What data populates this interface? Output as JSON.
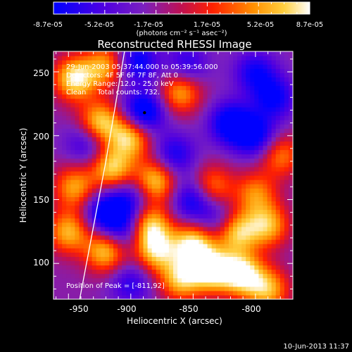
{
  "colorbar": {
    "tick_labels": [
      "-8.7e-05",
      "-5.2e-05",
      "-1.7e-05",
      "1.7e-05",
      "5.2e-05",
      "8.7e-05"
    ],
    "range": [
      -8.7e-05,
      8.7e-05
    ],
    "unit_label": "(photons cm⁻² s⁻¹ asec⁻²)",
    "colormap": "blue-purple-red-yellow-white"
  },
  "chart_data": {
    "type": "heatmap",
    "title": "Reconstructed RHESSI Image",
    "xlabel": "Heliocentric X (arcsec)",
    "ylabel": "Heliocentric Y (arcsec)",
    "xlim": [
      -962,
      -770
    ],
    "ylim": [
      72,
      266
    ],
    "x_ticks": [
      -950,
      -900,
      -850,
      -800
    ],
    "y_ticks": [
      100,
      150,
      200,
      250
    ],
    "x_tick_labels": [
      "-950",
      "-900",
      "-850",
      "-800"
    ],
    "y_tick_labels": [
      "100",
      "150",
      "200",
      "250"
    ],
    "annotations": [
      "29-Jun-2003 05:37:44.000 to 05:39:56.000",
      "Detectors: 4F 5F 6F 7F 8F, Att 0",
      "Energy Range: 12.0 - 25.0 keV",
      "Clean     Total counts: 732."
    ],
    "peak_label": "Position of Peak = [-811,92]",
    "peak_position": [
      -811,
      92
    ],
    "marker_position": [
      -889,
      218
    ],
    "limb_line": [
      [
        -941,
        72
      ],
      [
        -920,
        180
      ],
      [
        -905,
        266
      ]
    ],
    "intensity_blobs": [
      {
        "x": -945,
        "y": 245,
        "v": 0.95
      },
      {
        "x": -925,
        "y": 210,
        "v": 0.9
      },
      {
        "x": -900,
        "y": 200,
        "v": 0.9
      },
      {
        "x": -915,
        "y": 175,
        "v": 0.85
      },
      {
        "x": -920,
        "y": 255,
        "v": 0.7
      },
      {
        "x": -860,
        "y": 235,
        "v": 0.75
      },
      {
        "x": -945,
        "y": 160,
        "v": 0.7
      },
      {
        "x": -880,
        "y": 165,
        "v": 0.85
      },
      {
        "x": -835,
        "y": 160,
        "v": 0.65
      },
      {
        "x": -800,
        "y": 155,
        "v": 0.6
      },
      {
        "x": -780,
        "y": 185,
        "v": 0.6
      },
      {
        "x": -950,
        "y": 125,
        "v": 0.75
      },
      {
        "x": -920,
        "y": 110,
        "v": 0.85
      },
      {
        "x": -885,
        "y": 130,
        "v": 0.85
      },
      {
        "x": -880,
        "y": 110,
        "v": 0.8
      },
      {
        "x": -850,
        "y": 115,
        "v": 0.95
      },
      {
        "x": -835,
        "y": 95,
        "v": 1.0
      },
      {
        "x": -811,
        "y": 92,
        "v": 1.0
      },
      {
        "x": -815,
        "y": 125,
        "v": 0.85
      },
      {
        "x": -790,
        "y": 130,
        "v": 0.75
      },
      {
        "x": -860,
        "y": 88,
        "v": 0.8
      },
      {
        "x": -790,
        "y": 80,
        "v": 0.75
      },
      {
        "x": -890,
        "y": 218,
        "v": -0.9
      },
      {
        "x": -920,
        "y": 140,
        "v": -0.75
      },
      {
        "x": -900,
        "y": 150,
        "v": -0.5
      },
      {
        "x": -865,
        "y": 185,
        "v": -0.55
      },
      {
        "x": -850,
        "y": 150,
        "v": -0.65
      },
      {
        "x": -820,
        "y": 210,
        "v": -0.75
      },
      {
        "x": -800,
        "y": 200,
        "v": -0.7
      },
      {
        "x": -785,
        "y": 230,
        "v": -0.6
      },
      {
        "x": -800,
        "y": 250,
        "v": -0.55
      },
      {
        "x": -895,
        "y": 258,
        "v": -0.65
      },
      {
        "x": -855,
        "y": 255,
        "v": -0.5
      },
      {
        "x": -935,
        "y": 195,
        "v": -0.5
      },
      {
        "x": -905,
        "y": 125,
        "v": -0.5
      },
      {
        "x": -900,
        "y": 85,
        "v": -0.45
      },
      {
        "x": -830,
        "y": 135,
        "v": -0.4
      }
    ]
  },
  "footer": {
    "date_stamp": "10-Jun-2013 11:37"
  }
}
